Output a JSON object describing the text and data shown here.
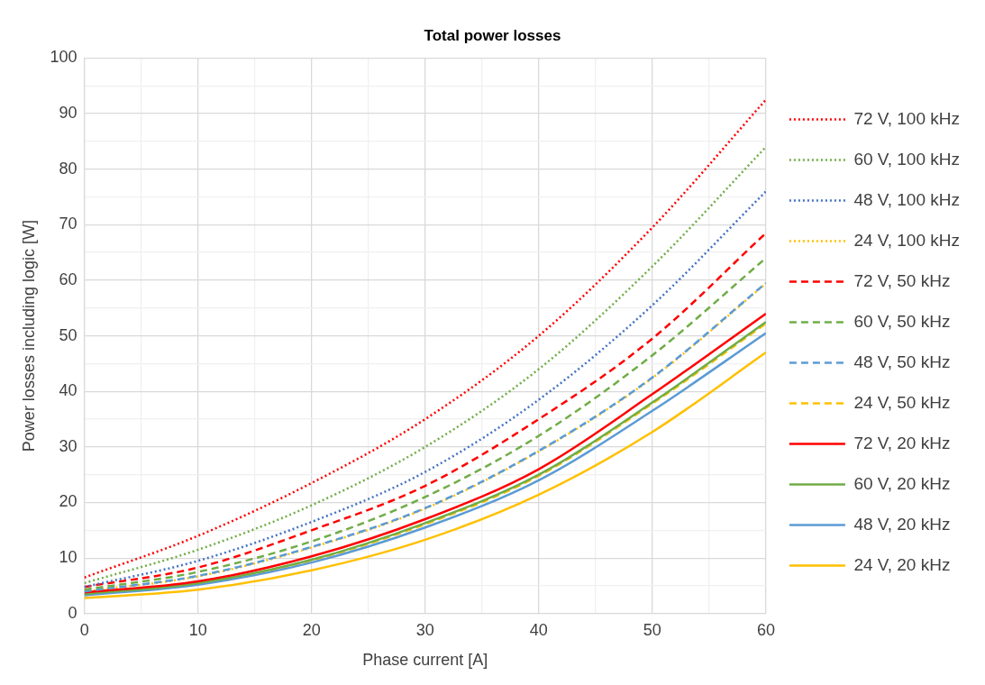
{
  "chart_data": {
    "type": "line",
    "title": "Total power losses",
    "xlabel": "Phase current [A]",
    "ylabel": "Power losses including logic [W]",
    "x": [
      0,
      10,
      20,
      30,
      40,
      50,
      60
    ],
    "xlim": [
      0,
      60
    ],
    "xticks": [
      0,
      {
        "value": 5,
        "label": null
      },
      10,
      {
        "value": 15,
        "label": null
      },
      20,
      {
        "value": 25,
        "label": null
      },
      30,
      {
        "value": 35,
        "label": null
      },
      40,
      {
        "value": 45,
        "label": null
      },
      50,
      {
        "value": 55,
        "label": null
      },
      60
    ],
    "ylim": [
      0,
      100
    ],
    "yticks": [
      0,
      {
        "value": 5,
        "label": null
      },
      10,
      {
        "value": 15,
        "label": null
      },
      20,
      {
        "value": 25,
        "label": null
      },
      30,
      {
        "value": 35,
        "label": null
      },
      40,
      {
        "value": 45,
        "label": null
      },
      50,
      {
        "value": 55,
        "label": null
      },
      60,
      {
        "value": 65,
        "label": null
      },
      70,
      {
        "value": 75,
        "label": null
      },
      80,
      {
        "value": 85,
        "label": null
      },
      90,
      {
        "value": 95,
        "label": null
      },
      100
    ],
    "grid": true,
    "legend": "right",
    "marker": "none",
    "series": [
      {
        "name": "72 V, 100 kHz",
        "color": "#ff0000",
        "line_style": "dotted",
        "values": [
          6.5,
          14,
          23.5,
          35,
          50,
          69.5,
          92.5
        ]
      },
      {
        "name": "60 V, 100 kHz",
        "color": "#70ad47",
        "line_style": "dotted",
        "values": [
          5.5,
          11.5,
          19.5,
          30,
          44,
          62.5,
          84
        ]
      },
      {
        "name": "48 V, 100 kHz",
        "color": "#4472c4",
        "line_style": "dotted",
        "values": [
          4.8,
          9.5,
          16.5,
          25.5,
          38.5,
          55.5,
          76
        ]
      },
      {
        "name": "24 V, 100 kHz",
        "color": "#ffc000",
        "line_style": "dotted",
        "values": [
          4,
          6.7,
          11.9,
          18.9,
          29.2,
          42.4,
          59.4
        ]
      },
      {
        "name": "72 V, 50 kHz",
        "color": "#ff0000",
        "line_style": "dashed",
        "values": [
          4.8,
          8.3,
          15,
          23,
          35,
          49.5,
          68.5
        ]
      },
      {
        "name": "60 V, 50 kHz",
        "color": "#70ad47",
        "line_style": "dashed",
        "values": [
          4.3,
          7.5,
          13,
          21,
          32,
          46.5,
          64
        ]
      },
      {
        "name": "48 V, 50 kHz",
        "color": "#5b9bd5",
        "line_style": "dashed",
        "values": [
          4,
          6.8,
          12,
          19,
          29.3,
          42.5,
          59.5
        ]
      },
      {
        "name": "24 V, 50 kHz",
        "color": "#ffc000",
        "line_style": "dashed",
        "values": [
          3.4,
          5.4,
          9.6,
          16.1,
          24.8,
          37.8,
          52.2
        ]
      },
      {
        "name": "72 V, 20 kHz",
        "color": "#ff0000",
        "line_style": "solid",
        "values": [
          3.8,
          5.8,
          10.3,
          17,
          26,
          39.5,
          54
        ]
      },
      {
        "name": "60 V, 20 kHz",
        "color": "#70ad47",
        "line_style": "solid",
        "values": [
          3.5,
          5.5,
          9.7,
          16.3,
          25,
          38,
          52.5
        ]
      },
      {
        "name": "48 V, 20 kHz",
        "color": "#5b9bd5",
        "line_style": "solid",
        "values": [
          3.3,
          5.2,
          9.2,
          15.5,
          24,
          36.5,
          50.5
        ]
      },
      {
        "name": "24 V, 20 kHz",
        "color": "#ffc000",
        "line_style": "solid",
        "values": [
          2.8,
          4.3,
          7.8,
          13.3,
          21.4,
          32.7,
          47
        ]
      }
    ]
  }
}
